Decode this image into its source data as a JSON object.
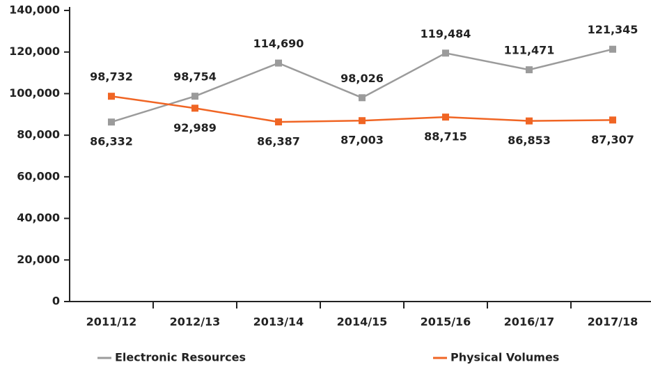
{
  "chart_data": {
    "type": "line",
    "categories": [
      "2011/12",
      "2012/13",
      "2013/14",
      "2014/15",
      "2015/16",
      "2016/17",
      "2017/18"
    ],
    "series": [
      {
        "name": "Electronic Resources",
        "color": "#9b9b9b",
        "values": [
          86332,
          98754,
          114690,
          98026,
          119484,
          111471,
          121345
        ],
        "value_labels": [
          "86,332",
          "98,754",
          "114,690",
          "98,026",
          "119,484",
          "111,471",
          "121,345"
        ]
      },
      {
        "name": "Physical Volumes",
        "color": "#f06524",
        "values": [
          98732,
          92989,
          86387,
          87003,
          88715,
          86853,
          87307
        ],
        "value_labels": [
          "98,732",
          "92,989",
          "86,387",
          "87,003",
          "88,715",
          "86,853",
          "87,307"
        ]
      }
    ],
    "ylim": [
      0,
      140000
    ],
    "yticks": [
      0,
      {
        "value": 20000,
        "label": "20,000"
      },
      {
        "value": 40000,
        "label": "40,000"
      },
      {
        "value": 60000,
        "label": "60,000"
      },
      {
        "value": 80000,
        "label": "80,000"
      },
      {
        "value": 100000,
        "label": "100,000"
      },
      {
        "value": 120000,
        "label": "120,000"
      },
      {
        "value": 140000,
        "label": "140,000"
      }
    ],
    "grid": false
  }
}
